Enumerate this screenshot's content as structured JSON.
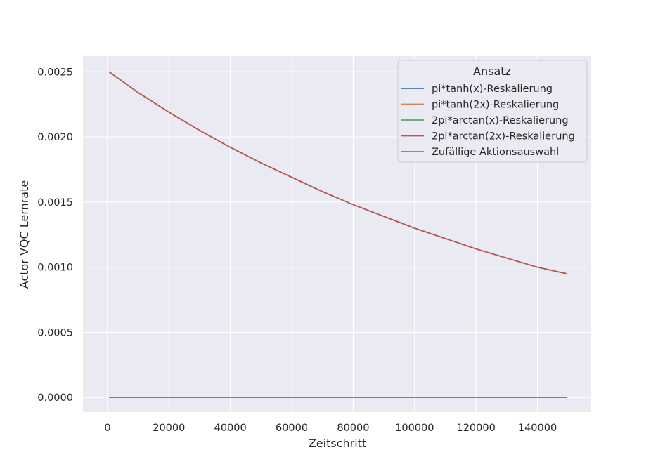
{
  "chart_data": {
    "type": "line",
    "xlabel": "Zeitschritt",
    "ylabel": "Actor VQC Lernrate",
    "xlim": [
      -8000,
      157500
    ],
    "ylim": [
      -0.000112,
      0.00262
    ],
    "x_ticks": [
      0,
      20000,
      40000,
      60000,
      80000,
      100000,
      120000,
      140000
    ],
    "x_tick_labels": [
      "0",
      "20000",
      "40000",
      "60000",
      "80000",
      "100000",
      "120000",
      "140000"
    ],
    "y_ticks": [
      0,
      0.0005,
      0.001,
      0.0015,
      0.002,
      0.0025
    ],
    "y_tick_labels": [
      "0.0000",
      "0.0005",
      "0.0010",
      "0.0015",
      "0.0020",
      "0.0025"
    ],
    "grid": true,
    "legend": {
      "title": "Ansatz",
      "placement": "top-right"
    },
    "x": [
      500,
      10000,
      20000,
      30000,
      40000,
      50000,
      60000,
      70000,
      80000,
      90000,
      100000,
      110000,
      120000,
      130000,
      140000,
      149500
    ],
    "series": [
      {
        "name": "pi*tanh(x)-Reskalierung",
        "color": "#4c72b0",
        "values": [
          0.0025,
          0.00234,
          0.00219,
          0.00205,
          0.00192,
          0.0018,
          0.00169,
          0.00158,
          0.00148,
          0.00139,
          0.0013,
          0.00122,
          0.00114,
          0.00107,
          0.001,
          0.00095
        ]
      },
      {
        "name": "pi*tanh(2x)-Reskalierung",
        "color": "#dd8452",
        "values": [
          0.0025,
          0.00234,
          0.00219,
          0.00205,
          0.00192,
          0.0018,
          0.00169,
          0.00158,
          0.00148,
          0.00139,
          0.0013,
          0.00122,
          0.00114,
          0.00107,
          0.001,
          0.00095
        ]
      },
      {
        "name": "2pi*arctan(x)-Reskalierung",
        "color": "#55a868",
        "values": [
          0.0025,
          0.00234,
          0.00219,
          0.00205,
          0.00192,
          0.0018,
          0.00169,
          0.00158,
          0.00148,
          0.00139,
          0.0013,
          0.00122,
          0.00114,
          0.00107,
          0.001,
          0.00095
        ]
      },
      {
        "name": "2pi*arctan(2x)-Reskalierung",
        "color": "#c44e52",
        "values": [
          0.0025,
          0.00234,
          0.00219,
          0.00205,
          0.00192,
          0.0018,
          0.00169,
          0.00158,
          0.00148,
          0.00139,
          0.0013,
          0.00122,
          0.00114,
          0.00107,
          0.001,
          0.00095
        ]
      },
      {
        "name": "Zufällige Aktionsauswahl",
        "color": "#8172b3",
        "values": [
          0,
          0,
          0,
          0,
          0,
          0,
          0,
          0,
          0,
          0,
          0,
          0,
          0,
          0,
          0,
          0
        ]
      }
    ],
    "colors": {
      "plot_background": "#eaeaf2",
      "grid": "#ffffff",
      "text": "#262626"
    }
  }
}
